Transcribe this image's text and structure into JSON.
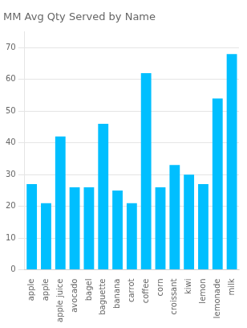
{
  "chart_data": {
    "type": "bar",
    "title": "MM Avg Qty Served by Name",
    "categories": [
      "apple",
      "apple",
      "apple juice",
      "avocado",
      "bagel",
      "baguette",
      "banana",
      "carrot",
      "coffee",
      "corn",
      "croissant",
      "kiwi",
      "lemon",
      "lemonade",
      "milk"
    ],
    "values": [
      27,
      21,
      42,
      26,
      26,
      46,
      25,
      21,
      62,
      26,
      33,
      30,
      27,
      54,
      68
    ],
    "color": "#00BFFF",
    "ylim": [
      0,
      75
    ],
    "yticks": [
      0,
      10,
      20,
      30,
      40,
      50,
      60,
      70
    ],
    "grid": true
  }
}
